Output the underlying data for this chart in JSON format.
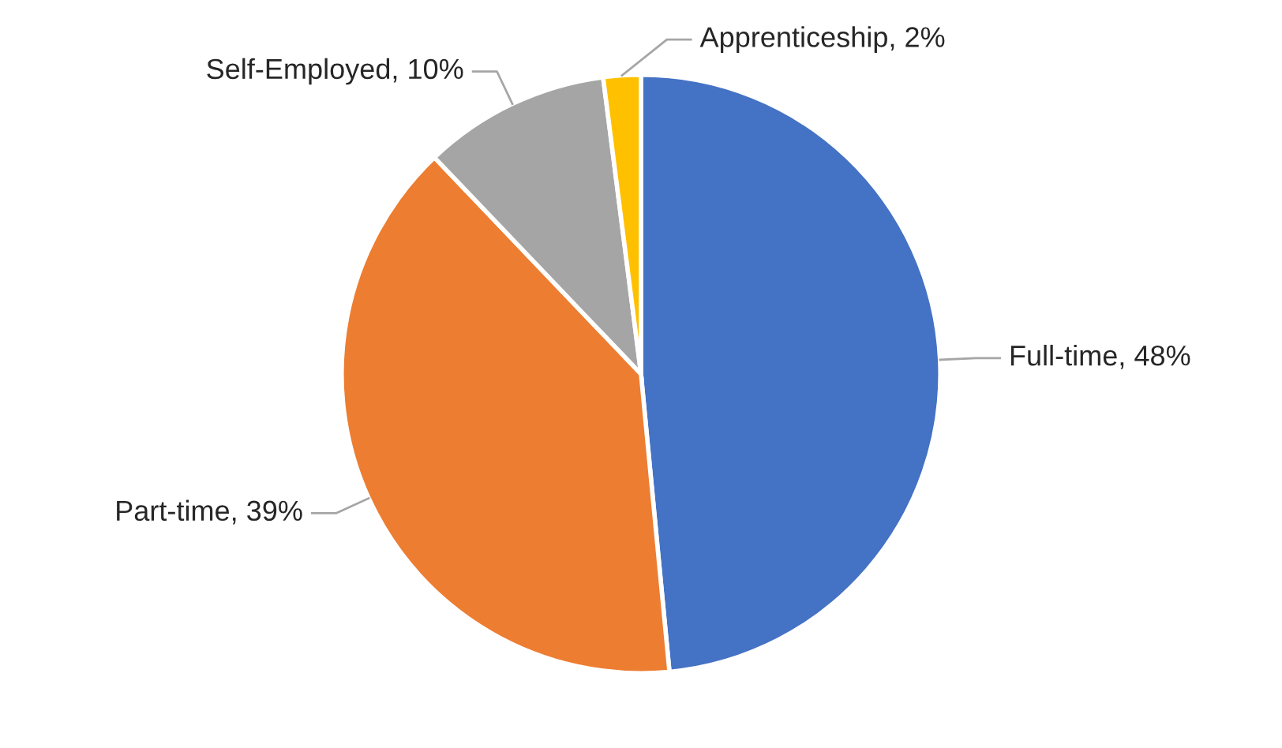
{
  "chart_data": {
    "type": "pie",
    "categories": [
      "Full-time",
      "Part-time",
      "Self-Employed",
      "Apprenticeship"
    ],
    "values": [
      48,
      39,
      10,
      2
    ],
    "value_labels": [
      "48%",
      "39%",
      "10%",
      "2%"
    ],
    "colors": [
      "#4472c4",
      "#ed7d31",
      "#a5a5a5",
      "#ffc000"
    ],
    "legend": false
  }
}
